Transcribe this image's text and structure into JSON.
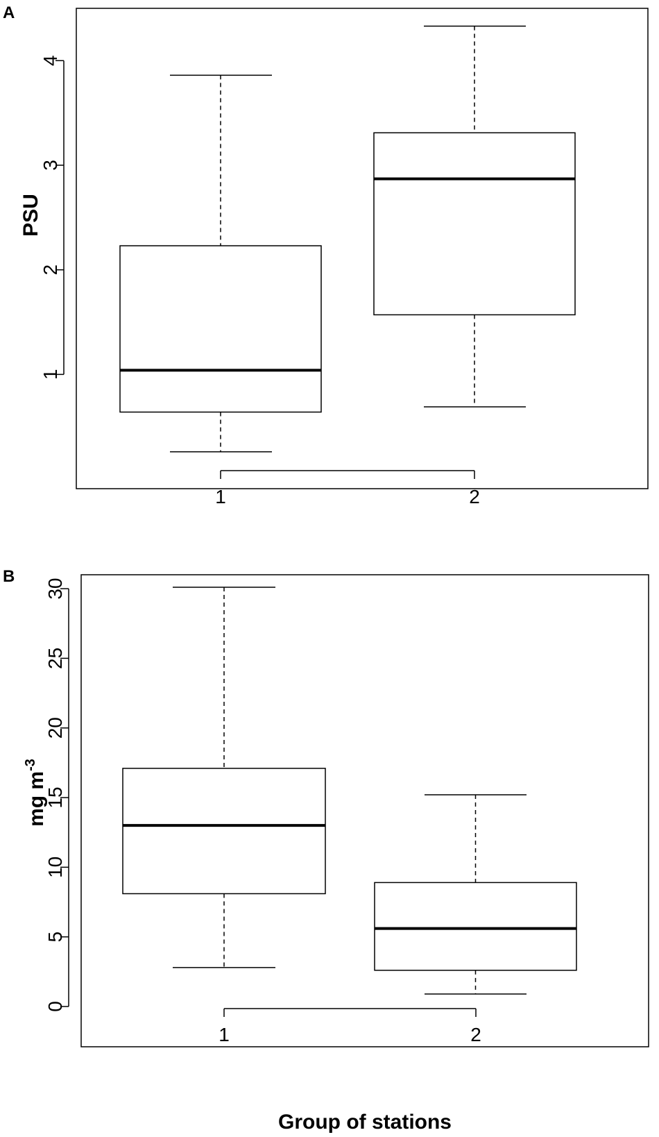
{
  "chart_data": [
    {
      "type": "boxplot",
      "panel_label": "A",
      "title": "",
      "xlabel": "",
      "ylabel": "PSU",
      "categories": [
        "1",
        "2"
      ],
      "ylim": [
        0.1,
        4.5
      ],
      "yticks": [
        1,
        2,
        3,
        4
      ],
      "grid": false,
      "boxes": [
        {
          "category": "1",
          "min": 0.26,
          "q1": 0.64,
          "median": 1.04,
          "q3": 2.23,
          "max": 3.86
        },
        {
          "category": "2",
          "min": 0.69,
          "q1": 1.57,
          "median": 2.87,
          "q3": 3.31,
          "max": 4.33
        }
      ]
    },
    {
      "type": "boxplot",
      "panel_label": "B",
      "title": "",
      "xlabel": "Group of stations",
      "ylabel": "mg m",
      "ylabel_superscript": "-3",
      "categories": [
        "1",
        "2"
      ],
      "ylim": [
        0,
        31
      ],
      "yticks": [
        0,
        5,
        10,
        15,
        20,
        25,
        30
      ],
      "grid": false,
      "boxes": [
        {
          "category": "1",
          "min": 2.8,
          "q1": 8.1,
          "median": 13.0,
          "q3": 17.1,
          "max": 30.1
        },
        {
          "category": "2",
          "min": 0.9,
          "q1": 2.6,
          "median": 5.6,
          "q3": 8.9,
          "max": 15.2
        }
      ]
    }
  ]
}
